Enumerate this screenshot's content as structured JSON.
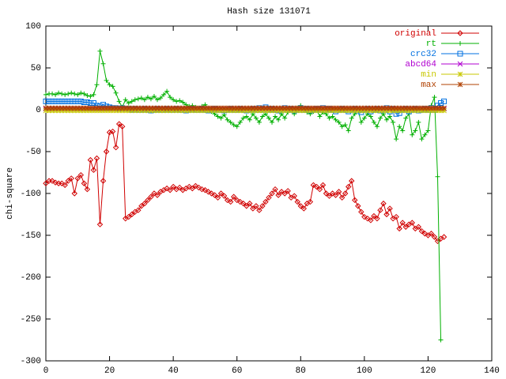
{
  "chart_data": {
    "type": "line",
    "title": "Hash size 131071",
    "y_label": "chi-square",
    "xlim": [
      0,
      140
    ],
    "xticks": [
      0,
      20,
      40,
      60,
      80,
      100,
      120,
      140
    ],
    "ylim": [
      -300,
      100
    ],
    "yticks": [
      -300,
      -250,
      -200,
      -150,
      -100,
      -50,
      0,
      50,
      100
    ],
    "grid": false,
    "legend": "top-right",
    "x": [
      0,
      1,
      2,
      3,
      4,
      5,
      6,
      7,
      8,
      9,
      10,
      11,
      12,
      13,
      14,
      15,
      16,
      17,
      18,
      19,
      20,
      21,
      22,
      23,
      24,
      25,
      26,
      27,
      28,
      29,
      30,
      31,
      32,
      33,
      34,
      35,
      36,
      37,
      38,
      39,
      40,
      41,
      42,
      43,
      44,
      45,
      46,
      47,
      48,
      49,
      50,
      51,
      52,
      53,
      54,
      55,
      56,
      57,
      58,
      59,
      60,
      61,
      62,
      63,
      64,
      65,
      66,
      67,
      68,
      69,
      70,
      71,
      72,
      73,
      74,
      75,
      76,
      77,
      78,
      79,
      80,
      81,
      82,
      83,
      84,
      85,
      86,
      87,
      88,
      89,
      90,
      91,
      92,
      93,
      94,
      95,
      96,
      97,
      98,
      99,
      100,
      101,
      102,
      103,
      104,
      105,
      106,
      107,
      108,
      109,
      110,
      111,
      112,
      113,
      114,
      115,
      116,
      117,
      118,
      119,
      120,
      121,
      122,
      123,
      124,
      125
    ],
    "series": [
      {
        "name": "original",
        "color": "#d00000",
        "marker": "diamond",
        "values": [
          -88,
          -85,
          -85,
          -87,
          -88,
          -88,
          -90,
          -85,
          -82,
          -100,
          -82,
          -78,
          -88,
          -95,
          -60,
          -72,
          -58,
          -137,
          -85,
          -50,
          -27,
          -26,
          -45,
          -17,
          -20,
          -130,
          -128,
          -125,
          -122,
          -120,
          -115,
          -112,
          -108,
          -104,
          -100,
          -102,
          -98,
          -96,
          -94,
          -96,
          -92,
          -95,
          -93,
          -96,
          -94,
          -92,
          -94,
          -91,
          -93,
          -95,
          -96,
          -98,
          -100,
          -102,
          -105,
          -100,
          -103,
          -108,
          -110,
          -104,
          -108,
          -110,
          -112,
          -115,
          -112,
          -118,
          -115,
          -120,
          -115,
          -110,
          -105,
          -100,
          -95,
          -102,
          -98,
          -100,
          -97,
          -105,
          -103,
          -110,
          -115,
          -118,
          -112,
          -110,
          -90,
          -92,
          -95,
          -90,
          -100,
          -103,
          -100,
          -102,
          -98,
          -105,
          -100,
          -92,
          -85,
          -108,
          -115,
          -122,
          -128,
          -130,
          -132,
          -127,
          -130,
          -120,
          -112,
          -125,
          -118,
          -130,
          -128,
          -142,
          -135,
          -140,
          -137,
          -135,
          -142,
          -140,
          -145,
          -148,
          -150,
          -148,
          -152,
          -157,
          -154,
          -152
        ]
      },
      {
        "name": "rt",
        "color": "#00b000",
        "marker": "plus",
        "values": [
          18,
          19,
          19,
          18,
          20,
          19,
          18,
          19,
          20,
          19,
          18,
          20,
          19,
          17,
          16,
          18,
          30,
          70,
          55,
          35,
          30,
          28,
          20,
          10,
          3,
          12,
          8,
          10,
          12,
          13,
          14,
          12,
          15,
          13,
          16,
          12,
          14,
          18,
          22,
          15,
          12,
          10,
          11,
          9,
          6,
          4,
          5,
          3,
          2,
          4,
          6,
          2,
          -2,
          -5,
          -8,
          -10,
          -6,
          -12,
          -15,
          -18,
          -20,
          -15,
          -10,
          -8,
          -12,
          -5,
          -10,
          -15,
          -8,
          -5,
          -10,
          -15,
          -8,
          -12,
          -5,
          -10,
          -3,
          0,
          -5,
          2,
          5,
          0,
          -3,
          -5,
          -2,
          0,
          -8,
          -3,
          -5,
          -10,
          -8,
          -12,
          -15,
          -20,
          -18,
          -25,
          -10,
          -5,
          0,
          -15,
          -10,
          -5,
          -8,
          -15,
          -20,
          -10,
          -5,
          -12,
          -8,
          -15,
          -35,
          -20,
          -25,
          -10,
          -5,
          -30,
          -25,
          -15,
          -35,
          -30,
          -25,
          5,
          15,
          -80,
          -275,
          null
        ]
      },
      {
        "name": "crc32",
        "color": "#0070e0",
        "marker": "square",
        "values": [
          10,
          10,
          10,
          10,
          10,
          10,
          10,
          10,
          10,
          10,
          10,
          10,
          9,
          9,
          8,
          8,
          5,
          4,
          6,
          4,
          3,
          2,
          2,
          1,
          2,
          1,
          1,
          0,
          1,
          0,
          0,
          1,
          0,
          -1,
          0,
          1,
          0,
          0,
          1,
          0,
          0,
          1,
          0,
          0,
          -1,
          0,
          1,
          0,
          0,
          1,
          0,
          -1,
          0,
          1,
          0,
          0,
          -1,
          0,
          1,
          0,
          0,
          1,
          0,
          -1,
          0,
          1,
          0,
          2,
          0,
          3,
          0,
          1,
          0,
          -1,
          0,
          2,
          0,
          1,
          -1,
          0,
          2,
          0,
          1,
          -1,
          0,
          1,
          0,
          2,
          0,
          1,
          0,
          -2,
          0,
          1,
          0,
          -2,
          0,
          1,
          -1,
          -3,
          0,
          1,
          -2,
          0,
          1,
          -1,
          0,
          2,
          -2,
          1,
          -5,
          -4,
          0,
          1,
          -2,
          0,
          1,
          -1,
          0,
          1,
          0,
          2,
          0,
          5,
          8,
          10
        ]
      },
      {
        "name": "abcd64",
        "color": "#b000d0",
        "marker": "cross",
        "values": [
          1,
          1,
          1,
          1,
          1,
          1,
          1,
          1,
          1,
          1,
          1,
          1,
          1,
          1,
          1,
          1,
          1,
          1,
          1,
          1,
          1,
          1,
          1,
          1,
          1,
          1,
          1,
          1,
          1,
          1,
          1,
          1,
          1,
          1,
          1,
          1,
          1,
          1,
          1,
          1,
          1,
          1,
          1,
          1,
          1,
          1,
          1,
          1,
          1,
          1,
          1,
          1,
          1,
          1,
          1,
          1,
          1,
          1,
          1,
          1,
          1,
          1,
          1,
          1,
          1,
          1,
          1,
          1,
          1,
          1,
          1,
          1,
          1,
          1,
          1,
          1,
          1,
          1,
          1,
          1,
          1,
          1,
          1,
          1,
          1,
          1,
          1,
          1,
          1,
          1,
          1,
          1,
          1,
          1,
          1,
          1,
          1,
          1,
          1,
          1,
          1,
          1,
          1,
          1,
          1,
          1,
          1,
          1,
          1,
          1,
          1,
          1,
          1,
          1,
          1,
          1,
          1,
          1,
          1,
          1,
          1,
          1,
          1,
          1,
          1,
          1
        ]
      },
      {
        "name": "min",
        "color": "#c8c800",
        "marker": "star",
        "values": [
          -1,
          -1,
          -1,
          -1,
          -1,
          -1,
          -1,
          -1,
          -1,
          -1,
          -1,
          -1,
          -1,
          -1,
          -1,
          -1,
          -1,
          -1,
          -1,
          -1,
          -1,
          -1,
          -1,
          -1,
          -1,
          -1,
          -1,
          -1,
          -1,
          -1,
          -1,
          -1,
          -1,
          -1,
          -1,
          -1,
          -1,
          -1,
          -1,
          -1,
          -1,
          -1,
          -1,
          -1,
          -1,
          -1,
          -1,
          -1,
          -1,
          -1,
          -1,
          -1,
          -1,
          -1,
          -1,
          -1,
          -1,
          -1,
          -1,
          -1,
          -1,
          -1,
          -1,
          -1,
          -1,
          -1,
          -1,
          -1,
          -1,
          -1,
          -1,
          -1,
          -1,
          -1,
          -1,
          -1,
          -1,
          -1,
          -1,
          -1,
          -1,
          -1,
          -1,
          -1,
          -1,
          -1,
          -1,
          -1,
          -1,
          -1,
          -1,
          -1,
          -1,
          -1,
          -1,
          -1,
          -1,
          -1,
          -1,
          -1,
          -1,
          -1,
          -1,
          -1,
          -1,
          -1,
          -1,
          -1,
          -1,
          -1,
          -1,
          -1,
          -1,
          -1,
          -1,
          -1,
          -1,
          -1,
          -1,
          -1,
          -1,
          -1,
          -1,
          -1,
          -1,
          -1
        ]
      },
      {
        "name": "max",
        "color": "#b04000",
        "marker": "star",
        "values": [
          2,
          2,
          2,
          2,
          2,
          2,
          2,
          2,
          2,
          2,
          2,
          2,
          2,
          2,
          2,
          2,
          2,
          2,
          2,
          2,
          2,
          2,
          2,
          2,
          2,
          2,
          2,
          2,
          2,
          2,
          2,
          2,
          2,
          2,
          2,
          2,
          2,
          2,
          2,
          2,
          2,
          2,
          2,
          2,
          2,
          2,
          2,
          2,
          2,
          2,
          2,
          2,
          2,
          2,
          2,
          2,
          2,
          2,
          2,
          2,
          2,
          2,
          2,
          2,
          2,
          2,
          2,
          2,
          2,
          2,
          2,
          2,
          2,
          2,
          2,
          2,
          2,
          2,
          2,
          2,
          2,
          2,
          2,
          2,
          2,
          2,
          2,
          2,
          2,
          2,
          2,
          2,
          2,
          2,
          2,
          2,
          2,
          2,
          2,
          2,
          2,
          2,
          2,
          2,
          2,
          2,
          2,
          2,
          2,
          2,
          2,
          2,
          2,
          2,
          2,
          2,
          2,
          2,
          2,
          2,
          2,
          2,
          2,
          2,
          2,
          2
        ]
      }
    ]
  }
}
